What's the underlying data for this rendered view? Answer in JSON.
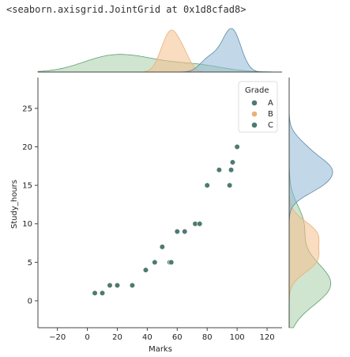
{
  "repr_text": "<seaborn.axisgrid.JointGrid at 0x1d8cfad8>",
  "colors": {
    "A": "#5b8aa6",
    "B": "#e8b07a",
    "C": "#5f9e70",
    "A_fill": "#8fb8d6",
    "B_fill": "#f5c08c",
    "C_fill": "#a7cfa8",
    "point": "#4d7a72",
    "axis": "#444444"
  },
  "chart_data": {
    "type": "scatter",
    "title": "",
    "xlabel": "Marks",
    "ylabel": "Study_hours",
    "xlim": [
      -33,
      130
    ],
    "ylim": [
      -3.5,
      29
    ],
    "xticks": [
      -20,
      0,
      20,
      40,
      60,
      80,
      100,
      120
    ],
    "yticks": [
      0,
      5,
      10,
      15,
      20,
      25
    ],
    "legend": {
      "title": "Grade",
      "position": "top-right",
      "entries": [
        "A",
        "B",
        "C"
      ]
    },
    "series": [
      {
        "name": "A",
        "points": [
          [
            80,
            15
          ],
          [
            88,
            17
          ],
          [
            95,
            15
          ],
          [
            96,
            17
          ],
          [
            97,
            18
          ],
          [
            100,
            20
          ]
        ]
      },
      {
        "name": "B",
        "points": [
          [
            50,
            7
          ],
          [
            55,
            5
          ],
          [
            56,
            5
          ],
          [
            60,
            9
          ],
          [
            65,
            9
          ]
        ]
      },
      {
        "name": "C",
        "points": [
          [
            5,
            1
          ],
          [
            10,
            1
          ],
          [
            15,
            2
          ],
          [
            20,
            2
          ],
          [
            30,
            2
          ],
          [
            39,
            4
          ],
          [
            45,
            5
          ],
          [
            72,
            10
          ],
          [
            75,
            10
          ]
        ]
      }
    ],
    "marginal": "kde"
  }
}
